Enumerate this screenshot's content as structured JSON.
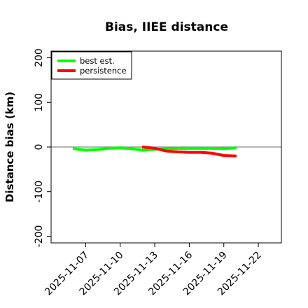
{
  "chart_data": {
    "type": "line",
    "title": "Bias, IIEE distance",
    "xlabel": "",
    "ylabel": "Distance bias (km)",
    "xlim": [
      "2025-11-04",
      "2025-11-24"
    ],
    "ylim": [
      -215,
      215
    ],
    "x_ticks": [
      "2025-11-07",
      "2025-11-10",
      "2025-11-13",
      "2025-11-16",
      "2025-11-19",
      "2025-11-22"
    ],
    "y_ticks": [
      -200,
      -100,
      0,
      100,
      200
    ],
    "y_tick_labels": [
      "-200",
      "-100",
      "0",
      "100",
      "200"
    ],
    "grid": false,
    "legend_position": "top-left",
    "reference_line": 0,
    "series": [
      {
        "name": "best est.",
        "color": "#00ff00",
        "x": [
          "2025-11-06",
          "2025-11-07",
          "2025-11-08",
          "2025-11-09",
          "2025-11-10",
          "2025-11-11",
          "2025-11-12",
          "2025-11-13",
          "2025-11-14",
          "2025-11-15",
          "2025-11-16",
          "2025-11-17",
          "2025-11-18",
          "2025-11-19",
          "2025-11-20"
        ],
        "y": [
          -4,
          -7,
          -6,
          -3,
          -2,
          -4,
          -7,
          -5,
          -4,
          -3,
          -3,
          -3,
          -3,
          -4,
          -2
        ]
      },
      {
        "name": "persistence",
        "color": "#ff0000",
        "x": [
          "2025-11-12",
          "2025-11-13",
          "2025-11-14",
          "2025-11-15",
          "2025-11-16",
          "2025-11-17",
          "2025-11-18",
          "2025-11-19",
          "2025-11-20"
        ],
        "y": [
          0,
          -3,
          -9,
          -11,
          -12,
          -12,
          -14,
          -19,
          -20
        ]
      }
    ]
  }
}
